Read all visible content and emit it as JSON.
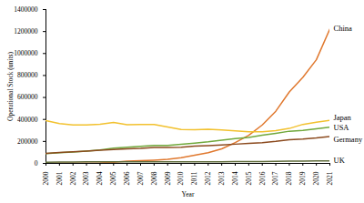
{
  "chart_data": {
    "type": "line",
    "x_label": "Year",
    "y_label": "Operational Stock (units)",
    "x": [
      2000,
      2001,
      2002,
      2003,
      2004,
      2005,
      2006,
      2007,
      2008,
      2009,
      2010,
      2011,
      2012,
      2013,
      2014,
      2015,
      2016,
      2017,
      2018,
      2019,
      2020,
      2021
    ],
    "xlim": [
      2000,
      2021
    ],
    "xticks": [
      2000,
      2001,
      2002,
      2003,
      2004,
      2005,
      2006,
      2007,
      2008,
      2009,
      2010,
      2011,
      2012,
      2013,
      2014,
      2015,
      2016,
      2017,
      2018,
      2019,
      2020,
      2021
    ],
    "ylim": [
      0,
      1400000
    ],
    "yticks": [
      0,
      200000,
      400000,
      600000,
      800000,
      1000000,
      1200000,
      1400000
    ],
    "grid": false,
    "series": [
      {
        "name": "China",
        "color": "#e0782e",
        "values": [
          1000,
          1500,
          2000,
          3000,
          5000,
          10000,
          20000,
          25000,
          30000,
          37000,
          52000,
          75000,
          97000,
          133000,
          190000,
          256000,
          350000,
          475000,
          650000,
          783000,
          943000,
          1224000
        ]
      },
      {
        "name": "Japan",
        "color": "#f2c12e",
        "values": [
          389000,
          362000,
          350000,
          349000,
          356000,
          373000,
          352000,
          355000,
          355000,
          332000,
          308000,
          307000,
          310000,
          304000,
          296000,
          287000,
          288000,
          298000,
          318000,
          355000,
          374000,
          393000
        ]
      },
      {
        "name": "USA",
        "color": "#70a83c",
        "values": [
          90000,
          98000,
          104000,
          112000,
          122000,
          139000,
          148000,
          156000,
          164000,
          163000,
          173000,
          185000,
          197000,
          212000,
          226000,
          237000,
          256000,
          274000,
          293000,
          300000,
          314000,
          330000
        ]
      },
      {
        "name": "Germany",
        "color": "#8b4a1e",
        "values": [
          91000,
          99000,
          105000,
          112000,
          121000,
          126000,
          132000,
          137000,
          145000,
          145000,
          148000,
          157000,
          162000,
          168000,
          175000,
          183000,
          189000,
          200000,
          215000,
          221000,
          231000,
          245000
        ]
      },
      {
        "name": "UK",
        "color": "#5e6b3a",
        "values": [
          11000,
          12000,
          13000,
          13500,
          14000,
          14500,
          15000,
          15000,
          14500,
          14000,
          14000,
          14500,
          15000,
          15500,
          16000,
          17000,
          17500,
          18500,
          20000,
          21500,
          22000,
          23000
        ]
      }
    ]
  }
}
